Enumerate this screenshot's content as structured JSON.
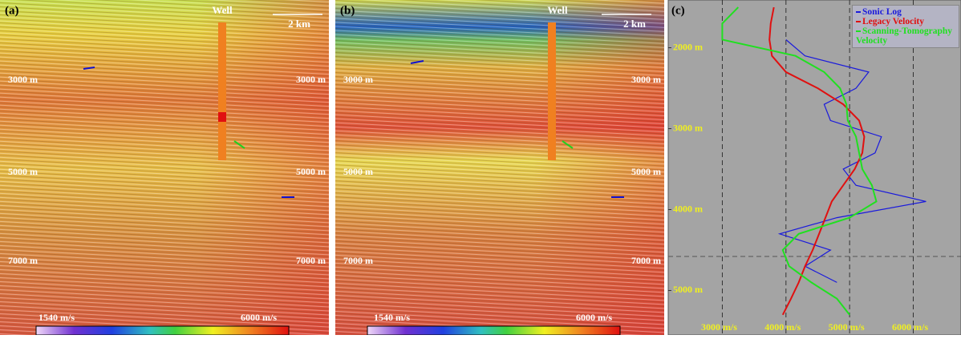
{
  "panels": [
    {
      "label": "(a)",
      "well": "Well",
      "scale": "2 km",
      "depths": [
        "3000 m",
        "5000 m",
        "7000 m"
      ],
      "colorbar": [
        "1540 m/s",
        "6000 m/s"
      ]
    },
    {
      "label": "(b)",
      "well": "Well",
      "scale": "2 km",
      "depths": [
        "3000 m",
        "5000 m",
        "7000 m"
      ],
      "colorbar": [
        "1540 m/s",
        "6000 m/s"
      ]
    }
  ],
  "chart_data": {
    "type": "line",
    "label": "(c)",
    "depth": [
      1500,
      1700,
      1900,
      2100,
      2300,
      2500,
      2700,
      2900,
      3100,
      3300,
      3500,
      3700,
      3900,
      4100,
      4300,
      4500,
      4700,
      4900,
      5100,
      5300
    ],
    "series": [
      {
        "name": "Sonic Log",
        "color": "#1a1adc",
        "values": [
          null,
          null,
          4000,
          4300,
          5300,
          5100,
          4600,
          4700,
          5500,
          5400,
          4900,
          5100,
          6200,
          4800,
          3900,
          4700,
          4300,
          4800,
          null,
          null
        ]
      },
      {
        "name": "Legacy Velocity",
        "color": "#e01010",
        "values": [
          3810,
          3760,
          3740,
          3780,
          4000,
          4500,
          4900,
          5150,
          5230,
          5200,
          5080,
          4900,
          4720,
          4620,
          4520,
          4420,
          4300,
          4200,
          4080,
          3950
        ]
      },
      {
        "name": "Scanning-Tomography Velocity",
        "color": "#20e020",
        "values": [
          3250,
          3000,
          3000,
          4150,
          4600,
          4850,
          4950,
          4970,
          5100,
          5150,
          5200,
          5350,
          5420,
          5000,
          4200,
          3950,
          4050,
          4400,
          4800,
          5000
        ]
      }
    ],
    "xlim": [
      2150,
      6750
    ],
    "xticks": [
      {
        "value": 3000,
        "label": "3000 m/s"
      },
      {
        "value": 4000,
        "label": "4000 m/s"
      },
      {
        "value": 5000,
        "label": "5000 m/s"
      },
      {
        "value": 6000,
        "label": "6000 m/s"
      }
    ],
    "ylim": [
      1410,
      5550
    ],
    "yticks": [
      {
        "value": 2000,
        "label": "2000 m"
      },
      {
        "value": 3000,
        "label": "3000 m"
      },
      {
        "value": 4000,
        "label": "4000 m"
      },
      {
        "value": 5000,
        "label": "5000 m"
      }
    ],
    "y_inverted": true,
    "grid": true,
    "legend": "top-right"
  }
}
